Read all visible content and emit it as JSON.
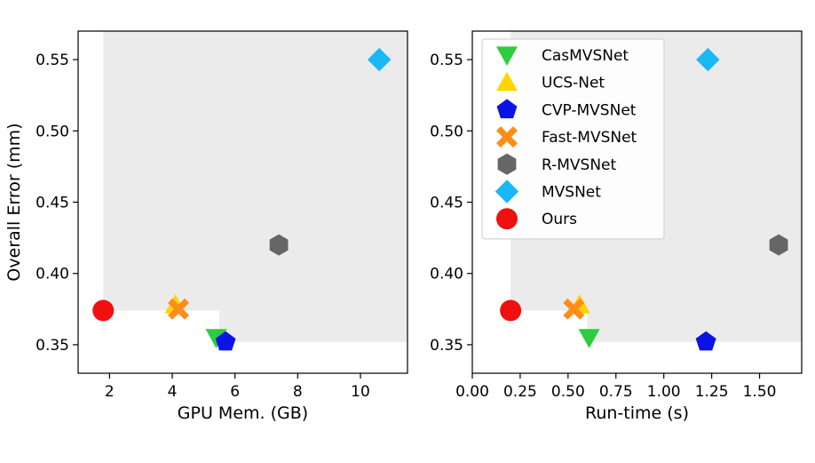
{
  "colors": {
    "CasMVSNet": "#2ecc40",
    "UCS-Net": "#ffd400",
    "CVP-MVSNet": "#0a14e6",
    "Fast-MVSNet": "#ff8c1a",
    "R-MVSNet": "#666666",
    "MVSNet": "#1ab8f5",
    "Ours": "#f01010",
    "dominated_region": "#ebebeb"
  },
  "legend": {
    "placement": "upper-left of right panel",
    "entries": [
      {
        "name": "CasMVSNet",
        "marker": "triangle-down-icon"
      },
      {
        "name": "UCS-Net",
        "marker": "triangle-up-icon"
      },
      {
        "name": "CVP-MVSNet",
        "marker": "pentagon-icon"
      },
      {
        "name": "Fast-MVSNet",
        "marker": "x-cross-icon"
      },
      {
        "name": "R-MVSNet",
        "marker": "hexagon-icon"
      },
      {
        "name": "MVSNet",
        "marker": "diamond-icon"
      },
      {
        "name": "Ours",
        "marker": "circle-icon"
      }
    ]
  },
  "chart_data": [
    {
      "type": "scatter",
      "xlabel": "GPU Mem. (GB)",
      "ylabel": "Overall Error (mm)",
      "xlim": [
        1.0,
        11.5
      ],
      "ylim": [
        0.33,
        0.57
      ],
      "xticks": [
        "2",
        "4",
        "6",
        "8",
        "10"
      ],
      "yticks": [
        "0.35",
        "0.40",
        "0.45",
        "0.50",
        "0.55"
      ],
      "grid": false,
      "dominated_region": [
        [
          1.8,
          0.57
        ],
        [
          1.8,
          0.374
        ],
        [
          5.5,
          0.374
        ],
        [
          5.5,
          0.352
        ],
        [
          11.5,
          0.352
        ],
        [
          11.5,
          0.57
        ]
      ],
      "points": [
        {
          "name": "CasMVSNet",
          "x": 5.4,
          "y": 0.355
        },
        {
          "name": "UCS-Net",
          "x": 4.1,
          "y": 0.378
        },
        {
          "name": "CVP-MVSNet",
          "x": 5.7,
          "y": 0.352
        },
        {
          "name": "Fast-MVSNet",
          "x": 4.2,
          "y": 0.375
        },
        {
          "name": "R-MVSNet",
          "x": 7.4,
          "y": 0.42
        },
        {
          "name": "MVSNet",
          "x": 10.6,
          "y": 0.55
        },
        {
          "name": "Ours",
          "x": 1.8,
          "y": 0.374
        }
      ]
    },
    {
      "type": "scatter",
      "xlabel": "Run-time (s)",
      "ylabel": "",
      "xlim": [
        0.0,
        1.72
      ],
      "ylim": [
        0.33,
        0.57
      ],
      "xticks": [
        "0.00",
        "0.25",
        "0.50",
        "0.75",
        "1.00",
        "1.25",
        "1.50"
      ],
      "yticks": [
        "0.35",
        "0.40",
        "0.45",
        "0.50",
        "0.55"
      ],
      "grid": false,
      "dominated_region": [
        [
          0.2,
          0.57
        ],
        [
          0.2,
          0.374
        ],
        [
          0.6,
          0.374
        ],
        [
          0.6,
          0.352
        ],
        [
          1.72,
          0.352
        ],
        [
          1.72,
          0.57
        ]
      ],
      "points": [
        {
          "name": "CasMVSNet",
          "x": 0.61,
          "y": 0.355
        },
        {
          "name": "UCS-Net",
          "x": 0.56,
          "y": 0.378
        },
        {
          "name": "CVP-MVSNet",
          "x": 1.22,
          "y": 0.352
        },
        {
          "name": "Fast-MVSNet",
          "x": 0.53,
          "y": 0.375
        },
        {
          "name": "R-MVSNet",
          "x": 1.6,
          "y": 0.42
        },
        {
          "name": "MVSNet",
          "x": 1.23,
          "y": 0.55
        },
        {
          "name": "Ours",
          "x": 0.2,
          "y": 0.374
        }
      ]
    }
  ]
}
